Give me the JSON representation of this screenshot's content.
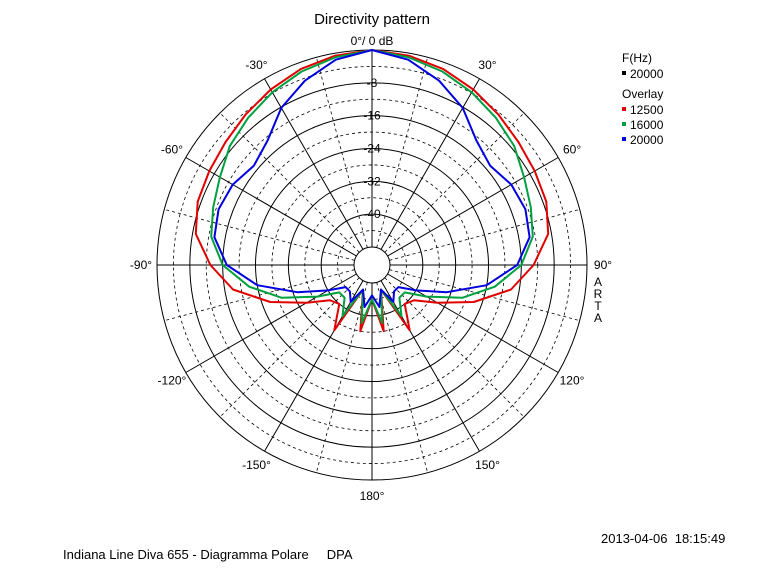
{
  "chart_data": {
    "type": "polar",
    "title": "Directivity pattern",
    "radial_axis": {
      "unit_label": "0°/ 0 dB",
      "range_db": [
        -48,
        0
      ],
      "ticks": [
        -8,
        -16,
        -24,
        -32,
        -40
      ],
      "tick_labels": [
        "-8",
        "-16",
        "-24",
        "-32",
        "-40"
      ]
    },
    "angle_axis": {
      "ticks_deg": [
        0,
        30,
        60,
        90,
        120,
        150,
        180,
        -150,
        -120,
        -90,
        -60,
        -30
      ],
      "tick_labels": {
        "30": "30°",
        "60": "60°",
        "90": "90°",
        "120": "120°",
        "150": "150°",
        "180": "180°",
        "-150": "-150°",
        "-120": "-120°",
        "-90": "-90°",
        "-60": "-60°",
        "-30": "-30°"
      }
    },
    "grid": true,
    "legend": {
      "placement": "top-right",
      "freq_header": "F(Hz)",
      "freq_entry": "20000",
      "freq_color": "#000000",
      "overlay_header": "Overlay",
      "overlay_entries": [
        {
          "label": "12500",
          "color": "#e00000"
        },
        {
          "label": "16000",
          "color": "#00a040"
        },
        {
          "label": "20000",
          "color": "#0000e0"
        }
      ]
    },
    "series": [
      {
        "name": "12500",
        "color": "#e00000",
        "angles_deg": [
          0,
          10,
          20,
          30,
          40,
          50,
          60,
          70,
          80,
          90,
          100,
          110,
          120,
          130,
          140,
          150,
          160,
          170,
          180
        ],
        "values_db": [
          0,
          -0.6,
          -1.6,
          -3,
          -4.5,
          -5.8,
          -6.6,
          -7.2,
          -8.8,
          -13,
          -18,
          -26,
          -34,
          -39,
          -40,
          -34,
          -46,
          -36,
          -44
        ]
      },
      {
        "name": "16000",
        "color": "#00a040",
        "angles_deg": [
          0,
          10,
          20,
          30,
          40,
          50,
          60,
          70,
          80,
          90,
          100,
          110,
          120,
          130,
          140,
          150,
          160,
          170,
          180
        ],
        "values_db": [
          0,
          -1,
          -2.2,
          -3.8,
          -5.5,
          -7.2,
          -9.6,
          -11.2,
          -12.6,
          -16,
          -22,
          -29,
          -37,
          -42,
          -42,
          -38,
          -46,
          -38,
          -44
        ]
      },
      {
        "name": "20000",
        "color": "#0000e0",
        "angles_deg": [
          0,
          10,
          20,
          30,
          40,
          50,
          60,
          70,
          80,
          90,
          100,
          110,
          120,
          130,
          140,
          150,
          160,
          170,
          180
        ],
        "values_db": [
          0,
          -1.6,
          -4.6,
          -8.2,
          -12.8,
          -14.8,
          -13.2,
          -12.6,
          -13.4,
          -17,
          -24,
          -33,
          -40,
          -44,
          -44,
          -42,
          -46,
          -42,
          -45
        ]
      }
    ]
  },
  "side_label": "ARTA",
  "footer": {
    "left": "Indiana Line Diva 655 - Diagramma Polare     DPA",
    "right": "2013-04-06  18:15:49"
  }
}
